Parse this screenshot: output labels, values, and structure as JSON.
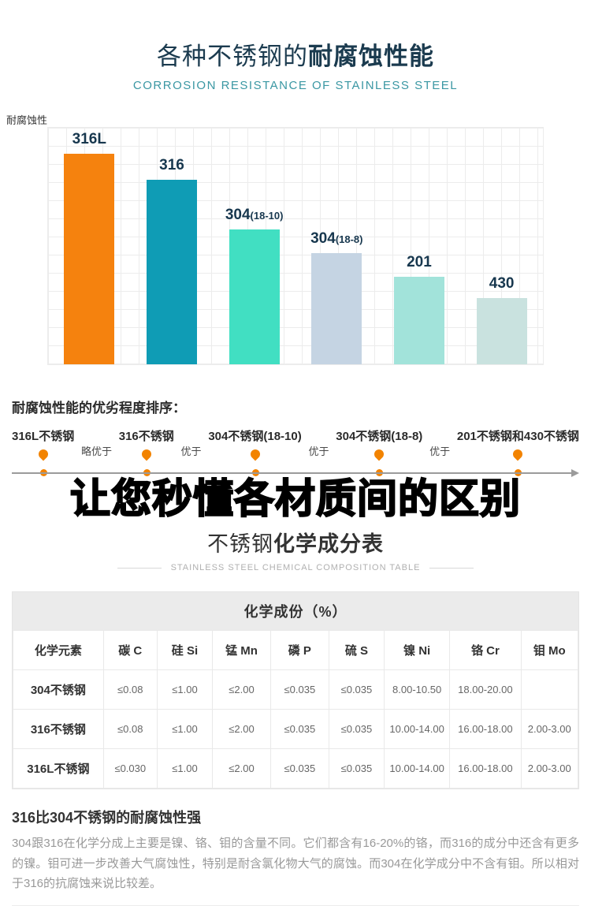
{
  "accent_colors": {
    "title_navy": "#1b3b4f",
    "teal": "#3a97a3",
    "orange": "#f28300"
  },
  "header": {
    "title_regular": "各种不锈钢的",
    "title_bold": "耐腐蚀性能",
    "subtitle": "CORROSION RESISTANCE OF STAINLESS STEEL"
  },
  "chart_data": [
    {
      "type": "bar",
      "title": "各种不锈钢的耐腐蚀性能",
      "xlabel": "",
      "ylabel": "耐腐蚀性",
      "categories": [
        "316L",
        "316",
        "304(18-10)",
        "304(18-8)",
        "201",
        "430"
      ],
      "values": [
        89,
        78,
        57,
        47,
        37,
        28
      ],
      "ylim": [
        0,
        100
      ],
      "grid": true,
      "legend": false,
      "bar_colors": [
        "#f5820e",
        "#0f9cb5",
        "#41dfc2",
        "#c5d4e3",
        "#a2e3da",
        "#c9e2df"
      ]
    },
    {
      "type": "table",
      "title": "化学成份（%）",
      "columns": [
        "化学元素",
        "碳 C",
        "硅 Si",
        "锰 Mn",
        "磷 P",
        "硫 S",
        "镍 Ni",
        "铬 Cr",
        "钼 Mo"
      ],
      "rows": [
        [
          "304不锈钢",
          "≤0.08",
          "≤1.00",
          "≤2.00",
          "≤0.035",
          "≤0.035",
          "8.00-10.50",
          "18.00-20.00",
          ""
        ],
        [
          "316不锈钢",
          "≤0.08",
          "≤1.00",
          "≤2.00",
          "≤0.035",
          "≤0.035",
          "10.00-14.00",
          "16.00-18.00",
          "2.00-3.00"
        ],
        [
          "316L不锈钢",
          "≤0.030",
          "≤1.00",
          "≤2.00",
          "≤0.035",
          "≤0.035",
          "10.00-14.00",
          "16.00-18.00",
          "2.00-3.00"
        ]
      ]
    }
  ],
  "ranking": {
    "heading": "耐腐蚀性能的优劣程度排序：",
    "items": [
      "316L不锈钢",
      "316不锈钢",
      "304不锈钢(18-10)",
      "304不锈钢(18-8)",
      "201不锈钢和430不锈钢"
    ],
    "relations": [
      "略优于",
      "优于",
      "优于",
      "优于"
    ]
  },
  "banner": {
    "text": "让您秒懂各材质间的区别"
  },
  "composition_section": {
    "title_regular": "不锈钢",
    "title_bold": "化学成分表",
    "subtitle": "STAINLESS STEEL CHEMICAL COMPOSITION TABLE"
  },
  "footer": {
    "heading": "316比304不锈钢的耐腐蚀性强",
    "paragraph": "304跟316在化学分成上主要是镍、铬、钼的含量不同。它们都含有16-20%的铬，而316的成分中还含有更多的镍。钼可进一步改善大气腐蚀性，特别是耐含氯化物大气的腐蚀。而304在化学成分中不含有钼。所以相对于316的抗腐蚀来说比较差。"
  }
}
